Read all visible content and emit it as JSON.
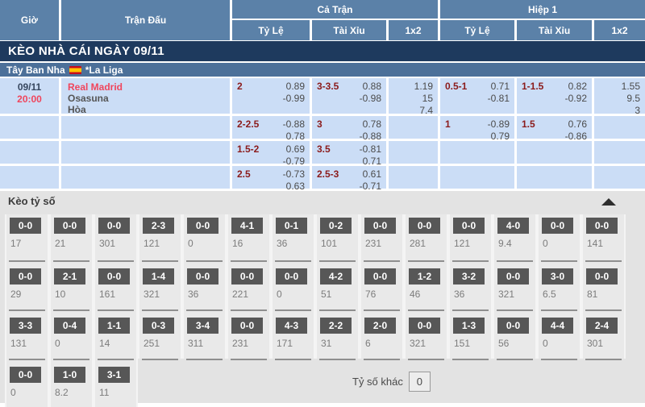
{
  "table_header": {
    "time": "Giờ",
    "match": "Trận Đấu",
    "full_time": "Cả Trận",
    "first_half": "Hiệp 1",
    "odds": "Tỷ Lệ",
    "over_under": "Tài Xỉu",
    "one_x_two": "1x2"
  },
  "day_bar": {
    "title": "KÈO NHÀ CÁI NGÀY 09/11"
  },
  "league_bar": {
    "country": "Tây Ban Nha",
    "flag_icon": "spain-flag",
    "league": "*La Liga"
  },
  "match": {
    "date": "09/11",
    "time": "20:00",
    "home": "Real Madrid",
    "away": "Osasuna",
    "draw": "Hòa",
    "rows": [
      {
        "ft_hdp": {
          "line": "2",
          "a": "0.89",
          "b": "-0.99"
        },
        "ft_ou": {
          "line": "3-3.5",
          "a": "0.88",
          "b": "-0.98"
        },
        "ft_1x2": [
          "1.19",
          "15",
          "7.4"
        ],
        "h1_hdp": {
          "line": "0.5-1",
          "a": "0.71",
          "b": "-0.81"
        },
        "h1_ou": {
          "line": "1-1.5",
          "a": "0.82",
          "b": "-0.92"
        },
        "h1_1x2": [
          "1.55",
          "9.5",
          "3"
        ]
      },
      {
        "ft_hdp": {
          "line": "2-2.5",
          "a": "-0.88",
          "b": "0.78"
        },
        "ft_ou": {
          "line": "3",
          "a": "0.78",
          "b": "-0.88"
        },
        "h1_hdp": {
          "line": "1",
          "a": "-0.89",
          "b": "0.79"
        },
        "h1_ou": {
          "line": "1.5",
          "a": "0.76",
          "b": "-0.86"
        }
      },
      {
        "ft_hdp": {
          "line": "1.5-2",
          "a": "0.69",
          "b": "-0.79"
        },
        "ft_ou": {
          "line": "3.5",
          "a": "-0.81",
          "b": "0.71"
        }
      },
      {
        "ft_hdp": {
          "line": "2.5",
          "a": "-0.73",
          "b": "0.63"
        },
        "ft_ou": {
          "line": "2.5-3",
          "a": "0.61",
          "b": "-0.71"
        }
      }
    ]
  },
  "score_section": {
    "title": "Kèo tỷ số",
    "collapse_icon": "caret-up-icon",
    "other_score_label": "Tỷ số khác",
    "other_score_value": "0",
    "rows": [
      [
        {
          "s": "0-0",
          "v": "17"
        },
        {
          "s": "0-0",
          "v": "21"
        },
        {
          "s": "0-0",
          "v": "301"
        },
        {
          "s": "2-3",
          "v": "121"
        },
        {
          "s": "0-0",
          "v": "0"
        },
        {
          "s": "4-1",
          "v": "16"
        },
        {
          "s": "0-1",
          "v": "36"
        },
        {
          "s": "0-2",
          "v": "101"
        },
        {
          "s": "0-0",
          "v": "231"
        },
        {
          "s": "0-0",
          "v": "281"
        },
        {
          "s": "0-0",
          "v": "121"
        },
        {
          "s": "4-0",
          "v": "9.4"
        },
        {
          "s": "0-0",
          "v": "0"
        },
        {
          "s": "0-0",
          "v": "141"
        }
      ],
      [
        {
          "s": "0-0",
          "v": "29"
        },
        {
          "s": "2-1",
          "v": "10"
        },
        {
          "s": "0-0",
          "v": "161"
        },
        {
          "s": "1-4",
          "v": "321"
        },
        {
          "s": "0-0",
          "v": "36"
        },
        {
          "s": "0-0",
          "v": "221"
        },
        {
          "s": "0-0",
          "v": "0"
        },
        {
          "s": "4-2",
          "v": "51"
        },
        {
          "s": "0-0",
          "v": "76"
        },
        {
          "s": "1-2",
          "v": "46"
        },
        {
          "s": "3-2",
          "v": "36"
        },
        {
          "s": "0-0",
          "v": "321"
        },
        {
          "s": "3-0",
          "v": "6.5"
        },
        {
          "s": "0-0",
          "v": "81"
        }
      ],
      [
        {
          "s": "3-3",
          "v": "131"
        },
        {
          "s": "0-4",
          "v": "0"
        },
        {
          "s": "1-1",
          "v": "14"
        },
        {
          "s": "0-3",
          "v": "251"
        },
        {
          "s": "3-4",
          "v": "311"
        },
        {
          "s": "0-0",
          "v": "231"
        },
        {
          "s": "4-3",
          "v": "171"
        },
        {
          "s": "2-2",
          "v": "31"
        },
        {
          "s": "2-0",
          "v": "6"
        },
        {
          "s": "0-0",
          "v": "321"
        },
        {
          "s": "1-3",
          "v": "151"
        },
        {
          "s": "0-0",
          "v": "56"
        },
        {
          "s": "4-4",
          "v": "0"
        },
        {
          "s": "2-4",
          "v": "301"
        }
      ],
      [
        {
          "s": "0-0",
          "v": "0"
        },
        {
          "s": "1-0",
          "v": "8.2"
        },
        {
          "s": "3-1",
          "v": "11"
        },
        null,
        null,
        null,
        null,
        null,
        null,
        null,
        null,
        null,
        null,
        null
      ]
    ]
  },
  "colors": {
    "navy": "#1e3a5e",
    "header_blue": "#5b81a8",
    "league_blue": "#4c7099",
    "row_blue": "#cbddf6",
    "handicap_red": "#8b1b1b",
    "team_red": "#f0455c",
    "score_chip_gray": "#575757"
  }
}
